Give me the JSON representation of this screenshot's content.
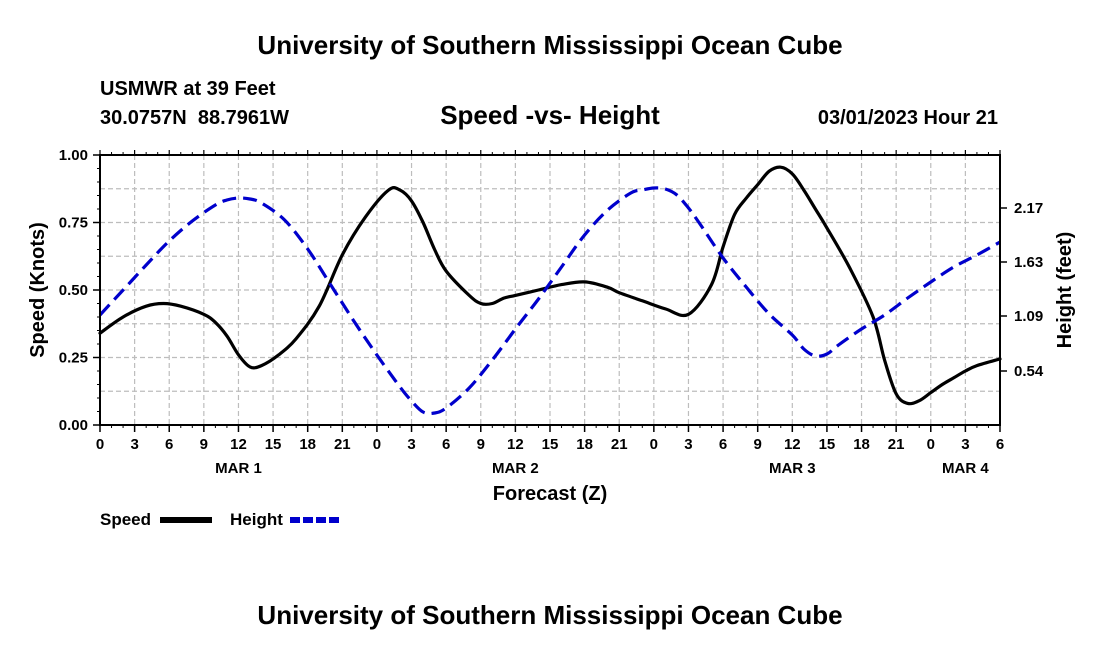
{
  "chart_data": {
    "type": "line",
    "title": "University of Southern Mississippi Ocean Cube",
    "footer_title": "University of Southern Mississippi Ocean Cube",
    "station": "USMWR at 39 Feet",
    "coords": "30.0757N  88.7961W",
    "subtitle": "Speed -vs- Height",
    "timestamp": "03/01/2023 Hour 21",
    "xlabel": "Forecast (Z)",
    "ylabel_left": "Speed (Knots)",
    "ylabel_right": "Height (feet)",
    "grid": true,
    "xlim": [
      0,
      78
    ],
    "ylim_left": [
      0,
      1.0
    ],
    "ylim_right": [
      0.0,
      2.7
    ],
    "x_ticks": [
      0,
      3,
      6,
      9,
      12,
      15,
      18,
      21,
      24,
      27,
      30,
      33,
      36,
      39,
      42,
      45,
      48,
      51,
      54,
      57,
      60,
      63,
      66,
      69,
      72,
      75,
      78
    ],
    "x_tick_labels": [
      "0",
      "3",
      "6",
      "9",
      "12",
      "15",
      "18",
      "21",
      "0",
      "3",
      "6",
      "9",
      "12",
      "15",
      "18",
      "21",
      "0",
      "3",
      "6",
      "9",
      "12",
      "15",
      "18",
      "21",
      "0",
      "3",
      "6"
    ],
    "date_labels": [
      {
        "x": 12,
        "label": "MAR 1"
      },
      {
        "x": 36,
        "label": "MAR 2"
      },
      {
        "x": 60,
        "label": "MAR 3"
      },
      {
        "x": 75,
        "label": "MAR 4"
      }
    ],
    "y_left_ticks": [
      0.0,
      0.25,
      0.5,
      0.75,
      1.0
    ],
    "y_left_tick_labels": [
      "0.00",
      "0.25",
      "0.50",
      "0.75",
      "1.00"
    ],
    "y_right_ticks": [
      0.54,
      1.09,
      1.63,
      2.17
    ],
    "y_right_tick_labels": [
      "0.54",
      "1.09",
      "1.63",
      "2.17"
    ],
    "series": [
      {
        "name": "Speed",
        "axis": "left",
        "color": "#000000",
        "style": "solid",
        "x": [
          0,
          2,
          4,
          5.5,
          7,
          9,
          10,
          11,
          12,
          13,
          14,
          15.5,
          17,
          19,
          21,
          23,
          25,
          26,
          27,
          28,
          29,
          30,
          32,
          33,
          34,
          35,
          36,
          38,
          40,
          42,
          44,
          45,
          47,
          49,
          51,
          53,
          54,
          55,
          56,
          57,
          58,
          59,
          60,
          61,
          62,
          63,
          65,
          67,
          68,
          69,
          70,
          71,
          72,
          73,
          74,
          75,
          76,
          78
        ],
        "values": [
          0.34,
          0.4,
          0.44,
          0.45,
          0.44,
          0.41,
          0.38,
          0.33,
          0.26,
          0.215,
          0.22,
          0.26,
          0.32,
          0.44,
          0.63,
          0.77,
          0.87,
          0.87,
          0.83,
          0.75,
          0.65,
          0.57,
          0.48,
          0.45,
          0.45,
          0.47,
          0.48,
          0.5,
          0.52,
          0.53,
          0.51,
          0.49,
          0.46,
          0.43,
          0.41,
          0.52,
          0.66,
          0.78,
          0.84,
          0.89,
          0.94,
          0.955,
          0.93,
          0.87,
          0.8,
          0.73,
          0.58,
          0.4,
          0.24,
          0.115,
          0.08,
          0.09,
          0.12,
          0.15,
          0.175,
          0.2,
          0.22,
          0.245
        ]
      },
      {
        "name": "Height",
        "axis": "right",
        "color": "#0000cc",
        "style": "dashed",
        "x": [
          0,
          2,
          4,
          6,
          8,
          10,
          11,
          12,
          13,
          14,
          16,
          18,
          20,
          22,
          24,
          26,
          27,
          28,
          29,
          30,
          32,
          34,
          36,
          38,
          40,
          42,
          44,
          46,
          47,
          48,
          49,
          50,
          51,
          52,
          54,
          56,
          58,
          60,
          61,
          62,
          63,
          64,
          66,
          68,
          70,
          72,
          74,
          76,
          78
        ],
        "values": [
          1.1,
          1.35,
          1.6,
          1.84,
          2.04,
          2.2,
          2.25,
          2.27,
          2.26,
          2.22,
          2.05,
          1.76,
          1.4,
          1.04,
          0.7,
          0.38,
          0.24,
          0.13,
          0.12,
          0.17,
          0.37,
          0.65,
          0.96,
          1.26,
          1.58,
          1.9,
          2.15,
          2.32,
          2.35,
          2.37,
          2.36,
          2.3,
          2.17,
          2.01,
          1.67,
          1.38,
          1.11,
          0.9,
          0.76,
          0.69,
          0.71,
          0.8,
          0.96,
          1.1,
          1.27,
          1.43,
          1.58,
          1.7,
          1.83
        ]
      }
    ],
    "legend": [
      {
        "label": "Speed",
        "color": "#000000",
        "style": "solid"
      },
      {
        "label": "Height",
        "color": "#0000cc",
        "style": "dashed"
      }
    ]
  }
}
